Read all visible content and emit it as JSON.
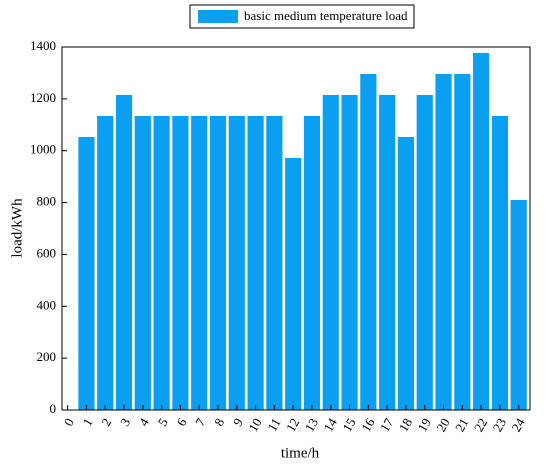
{
  "chart_data": {
    "type": "bar",
    "series": [
      {
        "name": "basic medium temperature load",
        "color": "#0a9ff0",
        "values": [
          1053,
          1134,
          1215,
          1134,
          1134,
          1134,
          1134,
          1134,
          1134,
          1134,
          1134,
          972,
          1134,
          1215,
          1215,
          1296,
          1215,
          1053,
          1215,
          1296,
          1296,
          1377,
          1134,
          810
        ]
      }
    ],
    "x": [
      1,
      2,
      3,
      4,
      5,
      6,
      7,
      8,
      9,
      10,
      11,
      12,
      13,
      14,
      15,
      16,
      17,
      18,
      19,
      20,
      21,
      22,
      23,
      24
    ],
    "xlim": [
      -0.3,
      24.6
    ],
    "xticks": [
      0,
      1,
      2,
      3,
      4,
      5,
      6,
      7,
      8,
      9,
      10,
      11,
      12,
      13,
      14,
      15,
      16,
      17,
      18,
      19,
      20,
      21,
      22,
      23,
      24
    ],
    "ylim": [
      0,
      1400
    ],
    "yticks": [
      0,
      200,
      400,
      600,
      800,
      1000,
      1200,
      1400
    ],
    "xlabel": "time/h",
    "ylabel": "load/kWh",
    "legend": "top"
  }
}
